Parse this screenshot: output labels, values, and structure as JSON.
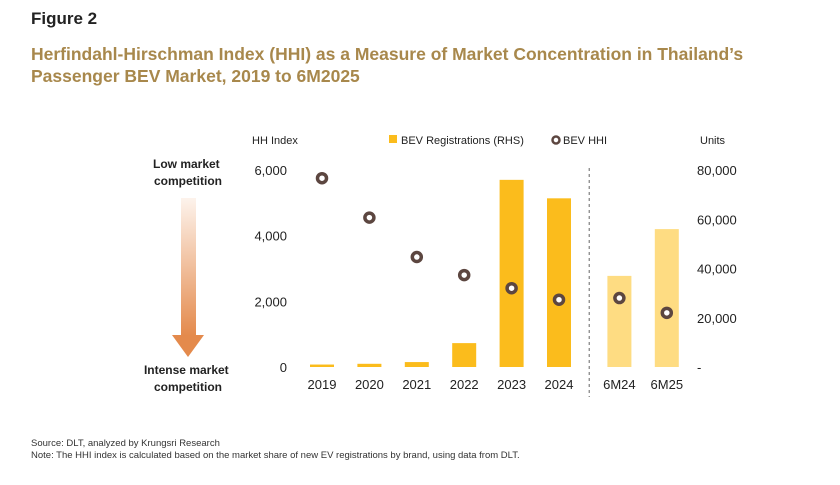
{
  "figure": {
    "label": "Figure 2",
    "title": "Herfindahl-Hirschman Index (HHI) as a Measure of Market Concentration in Thailand’s Passenger BEV Market, 2019 to 6M2025"
  },
  "side_labels": {
    "top": [
      "Low market",
      "competition"
    ],
    "bottom": [
      "Intense market",
      "competition"
    ]
  },
  "colors": {
    "bar": "#fbbc1c",
    "bar_partial": "#fedc82",
    "marker_stroke": "#5c4640",
    "arrow_top": "#fdf3ec",
    "arrow_bottom": "#e48a4c",
    "axis_text": "#222222"
  },
  "chart_data": {
    "type": "bar+scatter",
    "categories": [
      "2019",
      "2020",
      "2021",
      "2022",
      "2023",
      "2024",
      "6M24",
      "6M25"
    ],
    "left_axis": {
      "title": "HH Index",
      "ylim": [
        0,
        6000
      ],
      "ticks": [
        0,
        2000,
        4000,
        6000
      ],
      "tick_labels": [
        "0",
        "2,000",
        "4,000",
        "6,000"
      ]
    },
    "right_axis": {
      "title": "Units",
      "ylim": [
        0,
        80000
      ],
      "ticks": [
        0,
        20000,
        40000,
        60000,
        80000
      ],
      "tick_labels": [
        "-",
        "20,000",
        "40,000",
        "60,000",
        "80,000"
      ]
    },
    "series": [
      {
        "name": "BEV Registrations (RHS)",
        "type": "bar",
        "axis": "right",
        "values": [
          1000,
          1300,
          2000,
          9700,
          76000,
          68500,
          37000,
          56000
        ],
        "partial_period": [
          false,
          false,
          false,
          false,
          false,
          false,
          true,
          true
        ]
      },
      {
        "name": "BEV HHI",
        "type": "scatter",
        "axis": "left",
        "values": [
          5750,
          4550,
          3350,
          2800,
          2400,
          2050,
          2100,
          1650
        ]
      }
    ],
    "divider_between": [
      "2024",
      "6M24"
    ],
    "grid": false,
    "legend_position": "top"
  },
  "footer": {
    "source": "Source: DLT, analyzed by Krungsri Research",
    "note": "Note: The HHI index is calculated based on the market share of new EV registrations by brand, using data from DLT."
  }
}
